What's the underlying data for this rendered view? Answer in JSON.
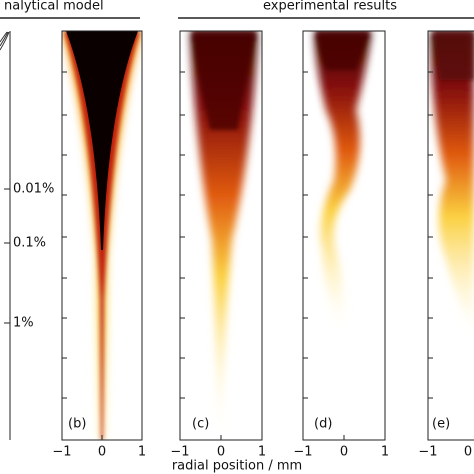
{
  "headers": {
    "left": "nalytical model",
    "right": "experimental results"
  },
  "scale_labels": [
    "0.01%",
    "0.1%",
    "1%"
  ],
  "panels": [
    {
      "label": "(b)",
      "ticks": [
        "−1",
        "0",
        "1"
      ]
    },
    {
      "label": "(c)",
      "ticks": [
        "−1",
        "0",
        "1"
      ]
    },
    {
      "label": "(d)",
      "ticks": [
        "−1",
        "0",
        "1"
      ]
    },
    {
      "label": "(e)",
      "ticks": [
        "−1",
        "0"
      ]
    }
  ],
  "x_axis_label": "radial position / mm"
}
